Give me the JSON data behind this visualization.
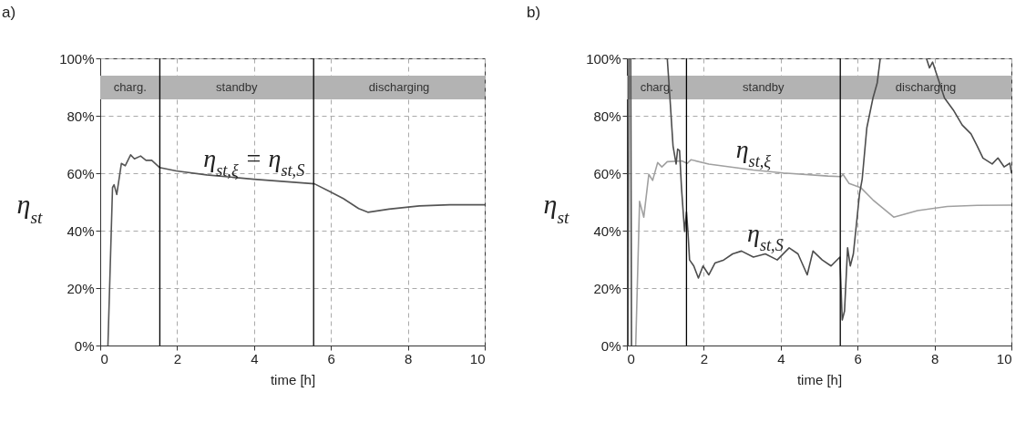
{
  "chart_data": [
    {
      "type": "line",
      "title": "a)",
      "xlabel": "time [h]",
      "ylabel": "η$_{st}$",
      "xlim": [
        0,
        10
      ],
      "ylim": [
        0,
        100
      ],
      "xticks": [
        0,
        2,
        4,
        6,
        8,
        10
      ],
      "yticks": [
        {
          "value": 0,
          "label": "0%"
        },
        {
          "value": 20,
          "label": "20%"
        },
        {
          "value": 40,
          "label": "40%"
        },
        {
          "value": 60,
          "label": "60%"
        },
        {
          "value": 80,
          "label": "80%"
        },
        {
          "value": 100,
          "label": "100%"
        }
      ],
      "grid": true,
      "bands": [
        {
          "axis": "x",
          "from": 0,
          "to": 1.55,
          "label": "charg.",
          "color": "#b3b3b3"
        },
        {
          "axis": "x",
          "from": 1.55,
          "to": 5.55,
          "label": "standby",
          "color": "#b3b3b3"
        },
        {
          "axis": "x",
          "from": 5.55,
          "to": 10,
          "label": "discharging",
          "color": "#b3b3b3"
        }
      ],
      "ref_lines": [
        {
          "axis": "x",
          "value": 1.55,
          "color": "#000000"
        },
        {
          "axis": "x",
          "value": 5.55,
          "color": "#000000"
        }
      ],
      "series": [
        {
          "name": "η$_{st,ξ}$ = η$_{st,S}$",
          "color": "#555555",
          "x": [
            0.2,
            0.32,
            0.36,
            0.43,
            0.55,
            0.65,
            0.79,
            0.89,
            1.05,
            1.19,
            1.34,
            1.54,
            1.98,
            2.77,
            4.0,
            5.57,
            5.93,
            6.32,
            6.72,
            6.96,
            7.51,
            8.3,
            9.09,
            10
          ],
          "values": [
            0,
            55,
            56,
            52.6,
            63.4,
            62.6,
            66.4,
            65,
            66,
            64.5,
            64.5,
            62,
            60.8,
            59.4,
            57.9,
            56.3,
            53.9,
            51.2,
            47.7,
            46.4,
            47.5,
            48.6,
            49,
            49
          ]
        }
      ]
    },
    {
      "type": "line",
      "title": "b)",
      "xlabel": "time [h]",
      "ylabel": "η$_{st}$",
      "xlim": [
        0,
        10
      ],
      "ylim": [
        0,
        100
      ],
      "xticks": [
        0,
        2,
        4,
        6,
        8,
        10
      ],
      "yticks": [
        {
          "value": 0,
          "label": "0%"
        },
        {
          "value": 20,
          "label": "20%"
        },
        {
          "value": 40,
          "label": "40%"
        },
        {
          "value": 60,
          "label": "60%"
        },
        {
          "value": 80,
          "label": "80%"
        },
        {
          "value": 100,
          "label": "100%"
        }
      ],
      "grid": true,
      "bands": [
        {
          "axis": "x",
          "from": 0,
          "to": 1.55,
          "label": "charg.",
          "color": "#b3b3b3"
        },
        {
          "axis": "x",
          "from": 1.55,
          "to": 5.55,
          "label": "standby",
          "color": "#b3b3b3"
        },
        {
          "axis": "x",
          "from": 5.55,
          "to": 10,
          "label": "discharging",
          "color": "#b3b3b3"
        }
      ],
      "ref_lines": [
        {
          "axis": "x",
          "value": 1.55,
          "color": "#000000"
        },
        {
          "axis": "x",
          "value": 5.55,
          "color": "#000000"
        }
      ],
      "series": [
        {
          "name": "η$_{st,ξ}$",
          "color": "#a0a0a0",
          "x": [
            0.23,
            0.33,
            0.44,
            0.57,
            0.67,
            0.8,
            0.91,
            1.05,
            1.43,
            1.57,
            1.67,
            2.13,
            3.29,
            4.07,
            5.23,
            5.57,
            5.62,
            5.78,
            6.09,
            6.4,
            6.94,
            7.56,
            8.33,
            9.11,
            10
          ],
          "values": [
            0,
            50.2,
            44.7,
            59.6,
            57.5,
            63.7,
            62.2,
            64,
            64.3,
            63.4,
            64.7,
            63.2,
            61.1,
            60.1,
            59,
            58.8,
            59.6,
            56.4,
            54.9,
            50.7,
            44.7,
            47,
            48.4,
            48.8,
            48.9
          ]
        },
        {
          "name": "η$_{st,S}$",
          "color": "#4d4d4d",
          "x": [
            0.03,
            0.05,
            0.1,
            0.12,
            0.5,
            1.05,
            1.12,
            1.2,
            1.28,
            1.32,
            1.37,
            1.42,
            1.5,
            1.55,
            1.59,
            1.63,
            1.74,
            1.86,
            1.98,
            2.13,
            2.29,
            2.52,
            2.75,
            2.98,
            3.29,
            3.6,
            3.91,
            4.22,
            4.45,
            4.69,
            4.84,
            5.08,
            5.31,
            5.54,
            5.6,
            5.66,
            5.74,
            5.81,
            5.89,
            5.97,
            6.05,
            6.12,
            6.24,
            6.4,
            6.51,
            6.59,
            7.2,
            7.79,
            7.87,
            7.95,
            8.26,
            8.49,
            8.72,
            8.95,
            9.11,
            9.26,
            9.5,
            9.65,
            9.81,
            9.96,
            10
          ],
          "values": [
            0,
            100,
            100,
            0,
            null,
            100,
            86.2,
            69.5,
            63.2,
            68.4,
            67.9,
            54.9,
            39.7,
            46.5,
            39.2,
            29.8,
            27.7,
            23.5,
            27.7,
            24.6,
            28.7,
            29.8,
            31.9,
            32.9,
            30.8,
            31.9,
            29.8,
            34,
            31.9,
            24.6,
            32.9,
            29.8,
            27.7,
            30.8,
            8.9,
            12,
            34,
            27.7,
            31.9,
            42.3,
            52.8,
            58,
            75.8,
            86.2,
            91.4,
            100,
            null,
            100,
            96.7,
            98.7,
            86.2,
            82,
            76.8,
            73.7,
            69.5,
            65.3,
            63.2,
            65.3,
            62.2,
            63.5,
            60.1
          ]
        }
      ]
    }
  ]
}
